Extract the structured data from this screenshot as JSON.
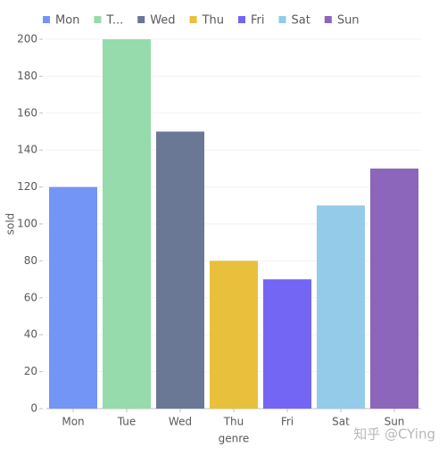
{
  "chart_data": {
    "type": "bar",
    "categories": [
      "Mon",
      "Tue",
      "Wed",
      "Thu",
      "Fri",
      "Sat",
      "Sun"
    ],
    "values": [
      120,
      200,
      150,
      80,
      70,
      110,
      130
    ],
    "colors": [
      "#7395f5",
      "#95dbab",
      "#6a7795",
      "#e8c03b",
      "#7366f5",
      "#94cbe9",
      "#8b66ba"
    ],
    "legend": [
      "Mon",
      "T...",
      "Wed",
      "Thu",
      "Fri",
      "Sat",
      "Sun"
    ],
    "x_label": "genre",
    "y_label": "sold",
    "ylim": [
      0,
      200
    ],
    "yticks": [
      0,
      20,
      40,
      60,
      80,
      100,
      120,
      140,
      160,
      180,
      200
    ],
    "grid": true,
    "watermark": "知乎 @CYing"
  }
}
